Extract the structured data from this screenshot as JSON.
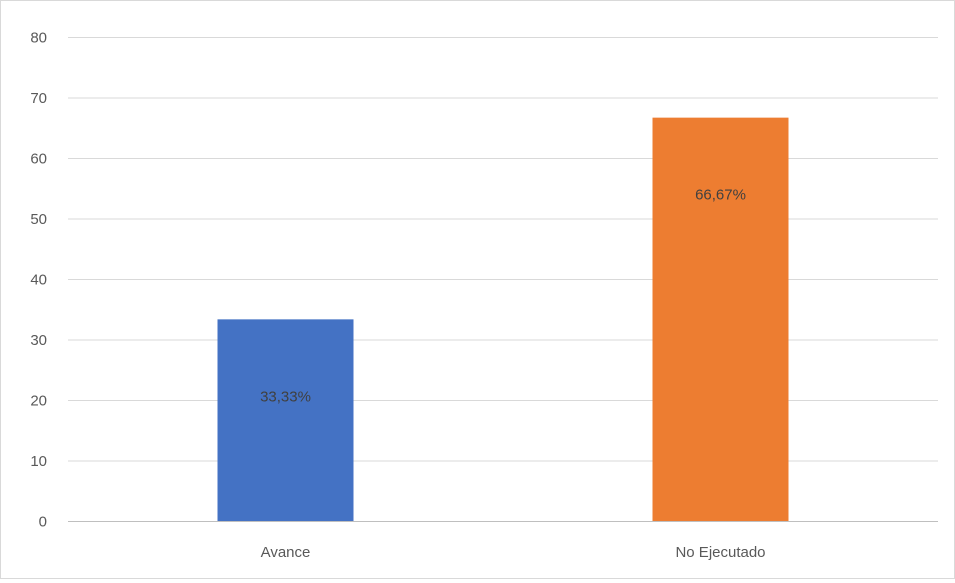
{
  "chart_data": {
    "type": "bar",
    "categories": [
      "Avance",
      "No Ejecutado"
    ],
    "values": [
      33.33,
      66.67
    ],
    "data_labels": [
      "33,33%",
      "66,67%"
    ],
    "colors": [
      "#4472c4",
      "#ed7d31"
    ],
    "ylim": [
      0,
      80
    ],
    "yticks": [
      0,
      10,
      20,
      30,
      40,
      50,
      60,
      70,
      80
    ],
    "grid": true,
    "legend": "none"
  }
}
